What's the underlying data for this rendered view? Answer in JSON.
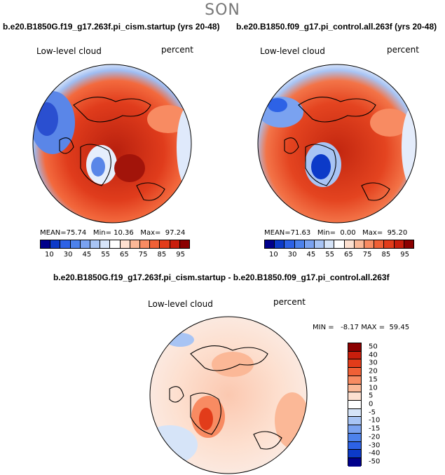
{
  "season": "SON",
  "panels": [
    {
      "title": "b.e20.B1850G.f19_g17.263f.pi_cism.startup (yrs 20-48)",
      "var_label": "Low-level cloud",
      "units": "percent",
      "mean_label": "MEAN=",
      "mean": "75.74",
      "min_label": "Min=",
      "min": "10.36",
      "max_label": "Max=",
      "max": "97.24"
    },
    {
      "title": "b.e20.B1850.f09_g17.pi_control.all.263f (yrs 20-48)",
      "var_label": "Low-level cloud",
      "units": "percent",
      "mean_label": "MEAN=",
      "mean": "71.63",
      "min_label": "Min=",
      "min": "0.00",
      "max_label": "Max=",
      "max": "95.20"
    }
  ],
  "diff": {
    "title": "b.e20.B1850G.f19_g17.263f.pi_cism.startup - b.e20.B1850.f09_g17.pi_control.all.263f",
    "var_label": "Low-level cloud",
    "units": "percent",
    "minmax": "MIN =   -8.17 MAX =  59.45"
  },
  "colorbar_main": {
    "colors": [
      "#00008b",
      "#0c3ac8",
      "#2d62e6",
      "#4d82ec",
      "#7aa2f0",
      "#a8c4f4",
      "#d6e4f8",
      "#ffffff",
      "#fde0d0",
      "#fbb897",
      "#f88b62",
      "#f06036",
      "#e23c1a",
      "#c81e0c",
      "#8b0000"
    ],
    "ticks": [
      "10",
      "30",
      "45",
      "55",
      "65",
      "75",
      "85",
      "95"
    ]
  },
  "colorbar_diff": {
    "colors": [
      "#8b0000",
      "#c81e0c",
      "#e23c1a",
      "#f06036",
      "#f88b62",
      "#fbb897",
      "#fde0d0",
      "#ffffff",
      "#d6e4f8",
      "#a8c4f4",
      "#7aa2f0",
      "#4d82ec",
      "#2d62e6",
      "#0c3ac8",
      "#00008b"
    ],
    "ticks": [
      "50",
      "40",
      "30",
      "20",
      "15",
      "10",
      "5",
      "0",
      "-5",
      "-10",
      "-15",
      "-20",
      "-30",
      "-40",
      "-50"
    ]
  }
}
